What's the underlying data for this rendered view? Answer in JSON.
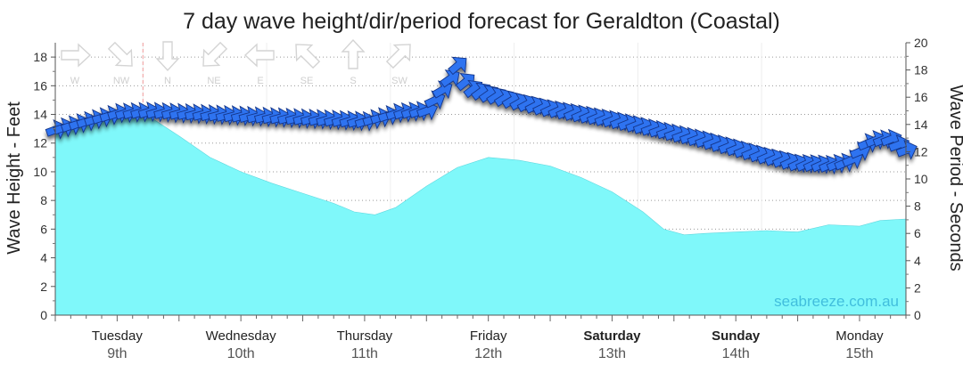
{
  "chart_data": {
    "type": "area",
    "title": "7 day wave height/dir/period forecast for Geraldton (Coastal)",
    "ylabel_left": "Wave Height - Feet",
    "ylabel_right": "Wave Period - Seconds",
    "ylim_left": [
      0,
      19
    ],
    "ylim_right": [
      0,
      20
    ],
    "yticks_left": [
      0,
      2,
      4,
      6,
      8,
      10,
      12,
      14,
      16,
      18
    ],
    "yticks_right": [
      0,
      2,
      4,
      6,
      8,
      10,
      12,
      14,
      16,
      18,
      20
    ],
    "xlim_hours": [
      0,
      165
    ],
    "grid": true,
    "watermark": "seabreeze.com.au",
    "now_marker_hour": 17,
    "days": [
      {
        "day": "Tuesday",
        "date": "9th",
        "bold": false
      },
      {
        "day": "Wednesday",
        "date": "10th",
        "bold": false
      },
      {
        "day": "Thursday",
        "date": "11th",
        "bold": false
      },
      {
        "day": "Friday",
        "date": "12th",
        "bold": false
      },
      {
        "day": "Saturday",
        "date": "13th",
        "bold": true
      },
      {
        "day": "Sunday",
        "date": "14th",
        "bold": true
      },
      {
        "day": "Monday",
        "date": "15th",
        "bold": false
      }
    ],
    "direction_legend": [
      {
        "label": "W",
        "angle": 90
      },
      {
        "label": "NW",
        "angle": 135
      },
      {
        "label": "N",
        "angle": 180
      },
      {
        "label": "NE",
        "angle": 225
      },
      {
        "label": "E",
        "angle": 270
      },
      {
        "label": "SE",
        "angle": 315
      },
      {
        "label": "S",
        "angle": 0
      },
      {
        "label": "SW",
        "angle": 45
      }
    ],
    "series": [
      {
        "name": "Wave Height",
        "unit": "ft",
        "color": "#7ff8fa",
        "points": [
          [
            0,
            13.0
          ],
          [
            6,
            13.3
          ],
          [
            12,
            13.9
          ],
          [
            18,
            13.9
          ],
          [
            24,
            12.5
          ],
          [
            30,
            11.0
          ],
          [
            36,
            10.0
          ],
          [
            42,
            9.2
          ],
          [
            48,
            8.5
          ],
          [
            54,
            7.8
          ],
          [
            58,
            7.2
          ],
          [
            62,
            7.0
          ],
          [
            66,
            7.5
          ],
          [
            72,
            9.0
          ],
          [
            78,
            10.3
          ],
          [
            84,
            11.0
          ],
          [
            90,
            10.8
          ],
          [
            96,
            10.4
          ],
          [
            102,
            9.6
          ],
          [
            108,
            8.6
          ],
          [
            114,
            7.2
          ],
          [
            118,
            6.0
          ],
          [
            122,
            5.6
          ],
          [
            126,
            5.7
          ],
          [
            132,
            5.8
          ],
          [
            138,
            5.9
          ],
          [
            144,
            5.8
          ],
          [
            150,
            6.3
          ],
          [
            156,
            6.2
          ],
          [
            160,
            6.6
          ],
          [
            165,
            6.7
          ]
        ]
      },
      {
        "name": "Wave Period",
        "unit": "s",
        "color": "#2f73f0",
        "points": [
          [
            0,
            13.6
          ],
          [
            6,
            14.2
          ],
          [
            12,
            14.8
          ],
          [
            18,
            14.9
          ],
          [
            24,
            14.8
          ],
          [
            30,
            14.7
          ],
          [
            36,
            14.6
          ],
          [
            42,
            14.5
          ],
          [
            48,
            14.4
          ],
          [
            54,
            14.3
          ],
          [
            60,
            14.2
          ],
          [
            66,
            14.8
          ],
          [
            72,
            15.0
          ],
          [
            76,
            17.0
          ],
          [
            78,
            18.3
          ],
          [
            80,
            16.7
          ],
          [
            84,
            16.2
          ],
          [
            90,
            15.6
          ],
          [
            96,
            15.1
          ],
          [
            102,
            14.7
          ],
          [
            108,
            14.3
          ],
          [
            114,
            13.8
          ],
          [
            120,
            13.3
          ],
          [
            126,
            12.8
          ],
          [
            132,
            12.2
          ],
          [
            138,
            11.6
          ],
          [
            144,
            11.1
          ],
          [
            150,
            11.0
          ],
          [
            154,
            11.2
          ],
          [
            158,
            12.8
          ],
          [
            162,
            12.9
          ],
          [
            165,
            12.1
          ]
        ]
      },
      {
        "name": "Wave Direction",
        "unit": "deg",
        "segments": [
          [
            0,
            250
          ],
          [
            24,
            255
          ],
          [
            48,
            255
          ],
          [
            72,
            250
          ],
          [
            78,
            230
          ],
          [
            96,
            245
          ],
          [
            120,
            250
          ],
          [
            144,
            245
          ],
          [
            165,
            250
          ]
        ]
      }
    ]
  }
}
